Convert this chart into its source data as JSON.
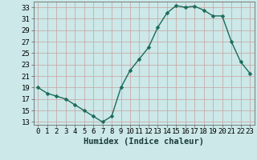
{
  "x": [
    0,
    1,
    2,
    3,
    4,
    5,
    6,
    7,
    8,
    9,
    10,
    11,
    12,
    13,
    14,
    15,
    16,
    17,
    18,
    19,
    20,
    21,
    22,
    23
  ],
  "y": [
    19,
    18,
    17.5,
    17,
    16,
    15,
    14,
    13,
    14,
    19,
    22,
    24,
    26,
    29.5,
    32,
    33.3,
    33,
    33.2,
    32.5,
    31.5,
    31.5,
    27,
    23.5,
    21.5
  ],
  "line_color": "#1a6b5a",
  "marker_color": "#1a6b5a",
  "bg_color": "#cce8e8",
  "grid_color": "#d9eeee",
  "xlabel": "Humidex (Indice chaleur)",
  "xlim": [
    -0.5,
    23.5
  ],
  "ylim": [
    12.5,
    34.0
  ],
  "yticks": [
    13,
    15,
    17,
    19,
    21,
    23,
    25,
    27,
    29,
    31,
    33
  ],
  "xticks": [
    0,
    1,
    2,
    3,
    4,
    5,
    6,
    7,
    8,
    9,
    10,
    11,
    12,
    13,
    14,
    15,
    16,
    17,
    18,
    19,
    20,
    21,
    22,
    23
  ],
  "xlabel_fontsize": 7.5,
  "tick_fontsize": 6.5,
  "line_width": 1.0,
  "marker_size": 2.5
}
